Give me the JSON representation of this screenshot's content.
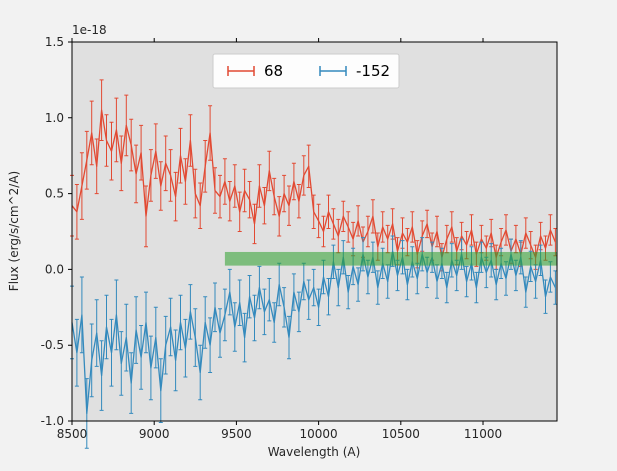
{
  "figure": {
    "bg_color": "#f2f2f2",
    "axes_bg_color": "#e0e0e0",
    "spine_color": "#000000"
  },
  "chart_data": {
    "type": "line",
    "title": "",
    "xlabel": "Wavelength (A)",
    "ylabel": "Flux (erg/s/cm^2/A)",
    "offset_text": "1e-18",
    "xlim": [
      8500,
      11450
    ],
    "ylim": [
      -1.0,
      1.5
    ],
    "xticks": [
      8500,
      9000,
      9500,
      10000,
      10500,
      11000
    ],
    "yticks": [
      -1.0,
      -0.5,
      0.0,
      0.5,
      1.0,
      1.5
    ],
    "grid": false,
    "legend": {
      "position": "upper center",
      "labels": [
        "68",
        "-152"
      ]
    },
    "band": {
      "x0": 9430,
      "x1": 11450,
      "y0": 0.025,
      "y1": 0.115,
      "color": "#2ca02c",
      "opacity": 0.55
    },
    "x": [
      8500,
      8530,
      8560,
      8590,
      8620,
      8650,
      8680,
      8710,
      8740,
      8770,
      8800,
      8830,
      8860,
      8890,
      8920,
      8950,
      8980,
      9010,
      9040,
      9070,
      9100,
      9130,
      9160,
      9190,
      9220,
      9250,
      9280,
      9310,
      9340,
      9370,
      9400,
      9430,
      9460,
      9490,
      9520,
      9550,
      9580,
      9610,
      9640,
      9670,
      9700,
      9730,
      9760,
      9790,
      9820,
      9850,
      9880,
      9910,
      9940,
      9970,
      10000,
      10030,
      10060,
      10090,
      10120,
      10150,
      10180,
      10210,
      10240,
      10270,
      10300,
      10330,
      10360,
      10390,
      10420,
      10450,
      10480,
      10510,
      10540,
      10570,
      10600,
      10630,
      10660,
      10690,
      10720,
      10750,
      10780,
      10810,
      10840,
      10870,
      10900,
      10930,
      10960,
      10990,
      11020,
      11050,
      11080,
      11110,
      11140,
      11170,
      11200,
      11230,
      11260,
      11290,
      11320,
      11350,
      11380,
      11410,
      11440
    ],
    "series": [
      {
        "name": "68",
        "color": "#e24a33",
        "y": [
          0.42,
          0.38,
          0.55,
          0.72,
          0.9,
          0.68,
          1.05,
          0.85,
          0.78,
          0.92,
          0.7,
          0.95,
          0.82,
          0.63,
          0.77,
          0.35,
          0.62,
          0.78,
          0.55,
          0.7,
          0.62,
          0.48,
          0.75,
          0.58,
          0.85,
          0.5,
          0.42,
          0.68,
          0.9,
          0.52,
          0.48,
          0.58,
          0.45,
          0.55,
          0.38,
          0.52,
          0.46,
          0.3,
          0.55,
          0.42,
          0.65,
          0.48,
          0.35,
          0.5,
          0.42,
          0.58,
          0.45,
          0.62,
          0.68,
          0.38,
          0.32,
          0.25,
          0.38,
          0.3,
          0.22,
          0.35,
          0.28,
          0.2,
          0.32,
          0.18,
          0.25,
          0.35,
          0.15,
          0.28,
          0.2,
          0.3,
          0.12,
          0.24,
          0.18,
          0.28,
          0.1,
          0.22,
          0.3,
          0.15,
          0.25,
          0.08,
          0.2,
          0.28,
          0.12,
          0.22,
          0.16,
          0.26,
          0.1,
          0.2,
          0.14,
          0.24,
          0.08,
          0.18,
          0.26,
          0.12,
          0.2,
          0.1,
          0.24,
          0.16,
          0.08,
          0.22,
          0.14,
          0.26,
          0.18
        ],
        "yerr": [
          0.2,
          0.18,
          0.22,
          0.19,
          0.21,
          0.18,
          0.2,
          0.17,
          0.19,
          0.21,
          0.18,
          0.2,
          0.17,
          0.19,
          0.18,
          0.2,
          0.17,
          0.18,
          0.16,
          0.18,
          0.17,
          0.16,
          0.18,
          0.15,
          0.17,
          0.16,
          0.15,
          0.17,
          0.18,
          0.15,
          0.14,
          0.15,
          0.13,
          0.14,
          0.13,
          0.14,
          0.12,
          0.13,
          0.14,
          0.12,
          0.13,
          0.12,
          0.13,
          0.12,
          0.13,
          0.12,
          0.11,
          0.13,
          0.14,
          0.11,
          0.11,
          0.1,
          0.11,
          0.1,
          0.11,
          0.1,
          0.1,
          0.11,
          0.1,
          0.1,
          0.1,
          0.11,
          0.09,
          0.1,
          0.09,
          0.1,
          0.09,
          0.1,
          0.09,
          0.1,
          0.09,
          0.1,
          0.09,
          0.09,
          0.1,
          0.09,
          0.09,
          0.1,
          0.09,
          0.09,
          0.09,
          0.1,
          0.08,
          0.09,
          0.08,
          0.09,
          0.08,
          0.09,
          0.1,
          0.08,
          0.09,
          0.08,
          0.1,
          0.09,
          0.08,
          0.09,
          0.08,
          0.1,
          0.09
        ]
      },
      {
        "name": "-152",
        "color": "#348abd",
        "y": [
          -0.35,
          -0.55,
          -0.3,
          -0.95,
          -0.6,
          -0.42,
          -0.7,
          -0.38,
          -0.55,
          -0.3,
          -0.62,
          -0.45,
          -0.75,
          -0.4,
          -0.58,
          -0.35,
          -0.65,
          -0.45,
          -0.8,
          -0.5,
          -0.38,
          -0.6,
          -0.35,
          -0.52,
          -0.28,
          -0.45,
          -0.68,
          -0.35,
          -0.5,
          -0.25,
          -0.42,
          -0.3,
          -0.15,
          -0.38,
          -0.22,
          -0.45,
          -0.18,
          -0.32,
          -0.12,
          -0.28,
          -0.2,
          -0.35,
          -0.1,
          -0.25,
          -0.45,
          -0.15,
          -0.28,
          -0.08,
          -0.2,
          -0.12,
          -0.25,
          -0.05,
          -0.18,
          0.05,
          -0.12,
          0.08,
          -0.15,
          0.02,
          -0.1,
          0.1,
          -0.05,
          0.08,
          -0.12,
          0.04,
          -0.08,
          0.12,
          -0.04,
          0.08,
          -0.1,
          0.05,
          -0.06,
          0.1,
          -0.02,
          0.08,
          -0.08,
          0.04,
          -0.12,
          0.06,
          -0.04,
          0.1,
          -0.08,
          0.04,
          -0.12,
          0.08,
          -0.02,
          0.06,
          -0.1,
          0.04,
          -0.06,
          0.1,
          -0.04,
          0.08,
          -0.15,
          0.02,
          -0.08,
          0.06,
          -0.18,
          -0.05,
          -0.12
        ],
        "yerr": [
          0.24,
          0.22,
          0.25,
          0.23,
          0.24,
          0.22,
          0.23,
          0.21,
          0.22,
          0.23,
          0.21,
          0.22,
          0.2,
          0.22,
          0.21,
          0.2,
          0.21,
          0.2,
          0.21,
          0.19,
          0.19,
          0.2,
          0.18,
          0.19,
          0.18,
          0.19,
          0.18,
          0.17,
          0.18,
          0.16,
          0.16,
          0.17,
          0.15,
          0.16,
          0.15,
          0.16,
          0.14,
          0.15,
          0.14,
          0.15,
          0.14,
          0.13,
          0.14,
          0.13,
          0.14,
          0.12,
          0.13,
          0.12,
          0.13,
          0.12,
          0.12,
          0.11,
          0.12,
          0.11,
          0.12,
          0.11,
          0.11,
          0.12,
          0.11,
          0.11,
          0.11,
          0.1,
          0.11,
          0.1,
          0.11,
          0.1,
          0.1,
          0.11,
          0.1,
          0.1,
          0.1,
          0.11,
          0.1,
          0.1,
          0.11,
          0.1,
          0.1,
          0.11,
          0.1,
          0.1,
          0.1,
          0.11,
          0.1,
          0.1,
          0.1,
          0.11,
          0.1,
          0.1,
          0.11,
          0.1,
          0.1,
          0.11,
          0.1,
          0.1,
          0.11,
          0.1,
          0.11,
          0.1,
          0.11
        ]
      }
    ]
  }
}
